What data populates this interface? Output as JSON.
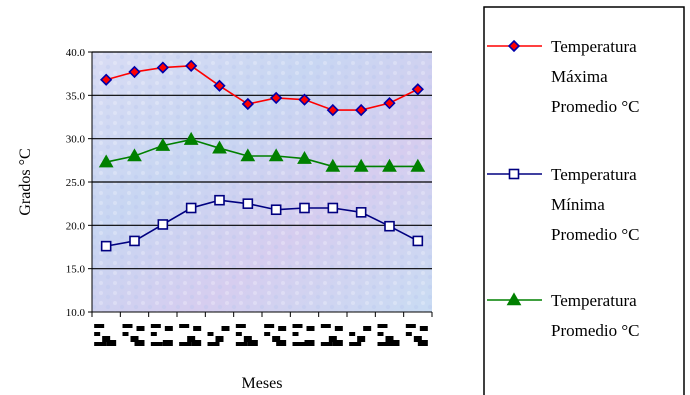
{
  "chart_data": {
    "type": "line",
    "x": [
      1,
      2,
      3,
      4,
      5,
      6,
      7,
      8,
      9,
      10,
      11,
      12
    ],
    "xlabel": "Meses",
    "ylabel": "Grados °C",
    "ylim": [
      10,
      40
    ],
    "yticks": [
      "10.0",
      "15.0",
      "20.0",
      "25.0",
      "30.0",
      "35.0",
      "40.0"
    ],
    "grid": "horizontal",
    "legend_position": "right",
    "series": [
      {
        "name": "Temperatura Máxima Promedio °C",
        "legend_lines": [
          "Temperatura",
          "Máxima",
          "Promedio °C"
        ],
        "color": "#ff0000",
        "marker_color": "#0000aa",
        "marker_fill": "#ff0000",
        "marker": "diamond",
        "values": [
          36.8,
          37.7,
          38.2,
          38.4,
          36.1,
          34.0,
          34.7,
          34.5,
          33.3,
          33.3,
          34.1,
          35.7
        ]
      },
      {
        "name": "Temperatura Mínima Promedio °C",
        "legend_lines": [
          "Temperatura",
          "Mínima",
          "Promedio °C"
        ],
        "color": "#000080",
        "marker_color": "#000080",
        "marker_fill": "#ffffff",
        "marker": "square",
        "values": [
          17.6,
          18.2,
          20.1,
          22.0,
          22.9,
          22.5,
          21.8,
          22.0,
          22.0,
          21.5,
          19.9,
          18.2
        ]
      },
      {
        "name": "Temperatura Promedio °C",
        "legend_lines": [
          "Temperatura",
          "Promedio °C"
        ],
        "color": "#008000",
        "marker_color": "#008000",
        "marker_fill": "#008000",
        "marker": "triangle",
        "values": [
          27.3,
          28.0,
          29.2,
          29.9,
          28.9,
          28.0,
          28.0,
          27.7,
          26.8,
          26.8,
          26.8,
          26.8
        ]
      }
    ]
  }
}
